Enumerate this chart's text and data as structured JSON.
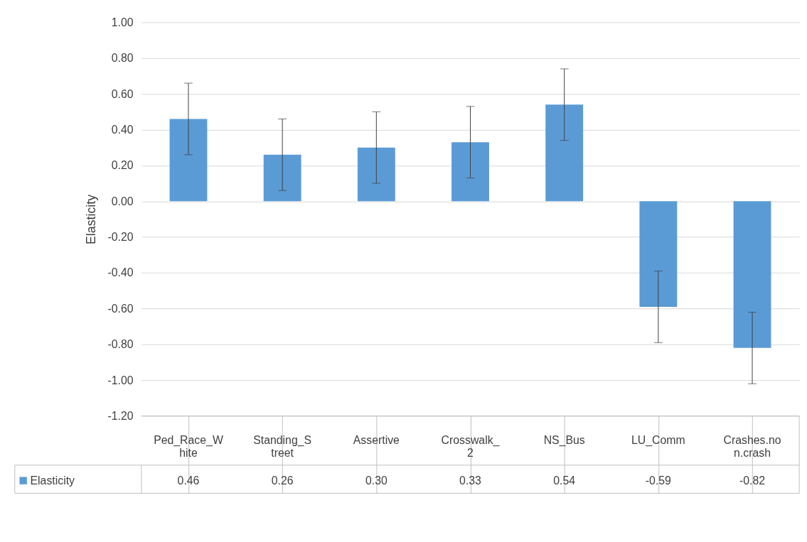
{
  "chart_data": {
    "type": "bar",
    "ylabel": "Elasticity",
    "categories": [
      "Ped_Race_White",
      "Standing_Street",
      "Assertive",
      "Crosswalk_2",
      "NS_Bus",
      "LU_Comm",
      "Crashes.non.crash"
    ],
    "series": [
      {
        "name": "Elasticity",
        "color": "#5b9bd5",
        "values": [
          0.46,
          0.26,
          0.3,
          0.33,
          0.54,
          -0.59,
          -0.82
        ],
        "errors": [
          0.2,
          0.2,
          0.2,
          0.2,
          0.2,
          0.2,
          0.2
        ],
        "value_labels": [
          "0.46",
          "0.26",
          "0.30",
          "0.33",
          "0.54",
          "-0.59",
          "-0.82"
        ]
      }
    ],
    "ylim": [
      -1.2,
      1.0
    ],
    "yticks": [
      {
        "value": -1.2,
        "label": "-1.20"
      },
      {
        "value": -1.0,
        "label": "-1.00"
      },
      {
        "value": -0.8,
        "label": "-0.80"
      },
      {
        "value": -0.6,
        "label": "-0.60"
      },
      {
        "value": -0.4,
        "label": "-0.40"
      },
      {
        "value": -0.2,
        "label": "-0.20"
      },
      {
        "value": 0.0,
        "label": "0.00"
      },
      {
        "value": 0.2,
        "label": "0.20"
      },
      {
        "value": 0.4,
        "label": "0.40"
      },
      {
        "value": 0.6,
        "label": "0.60"
      },
      {
        "value": 0.8,
        "label": "0.80"
      },
      {
        "value": 1.0,
        "label": "1.00"
      }
    ],
    "grid": "y",
    "legend": "bottom"
  }
}
